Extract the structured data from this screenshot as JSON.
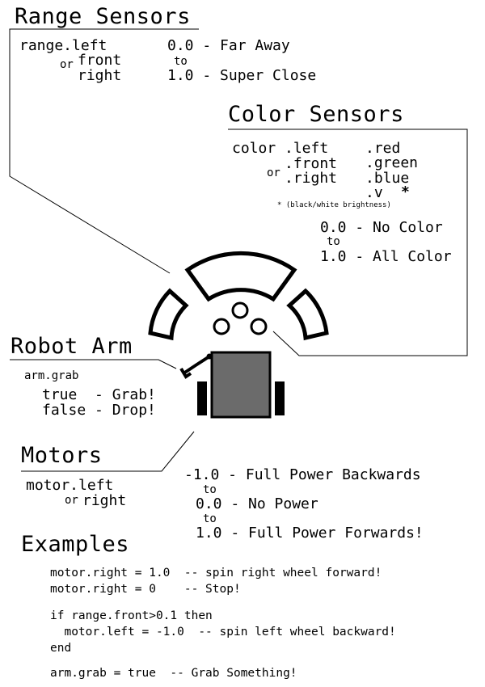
{
  "range_sensors": {
    "heading": "Range Sensors",
    "var": "range.left",
    "or": "or",
    "front": "front",
    "right": "right",
    "min": "0.0 - Far Away",
    "to": "to",
    "max": "1.0 - Super Close"
  },
  "color_sensors": {
    "heading": "Color Sensors",
    "var": "color",
    "left": ".left",
    "front": ".front",
    "or": "or",
    "right": ".right",
    "red": ".red",
    "green": ".green",
    "blue": ".blue",
    "v": ".v",
    "star": "*",
    "note": "* (black/white brightness)",
    "min": "0.0 - No Color",
    "to": "to",
    "max": "1.0 - All Color"
  },
  "robot_arm": {
    "heading": "Robot Arm",
    "var": "arm.grab",
    "true_line": "true  - Grab!",
    "false_line": "false - Drop!"
  },
  "motors": {
    "heading": "Motors",
    "var": "motor.left",
    "or": "or",
    "right": "right",
    "min": "-1.0 - Full Power Backwards",
    "to1": "to",
    "mid": "0.0 - No Power",
    "to2": "to",
    "max": "1.0 - Full Power Forwards!"
  },
  "examples": {
    "heading": "Examples",
    "line1": "motor.right = 1.0  -- spin right wheel forward!",
    "line2": "motor.right = 0    -- Stop!",
    "line3": "if range.front>0.1 then",
    "line4": "  motor.left = -1.0  -- spin left wheel backward!",
    "line5": "end",
    "line6": "arm.grab = true  -- Grab Something!"
  }
}
